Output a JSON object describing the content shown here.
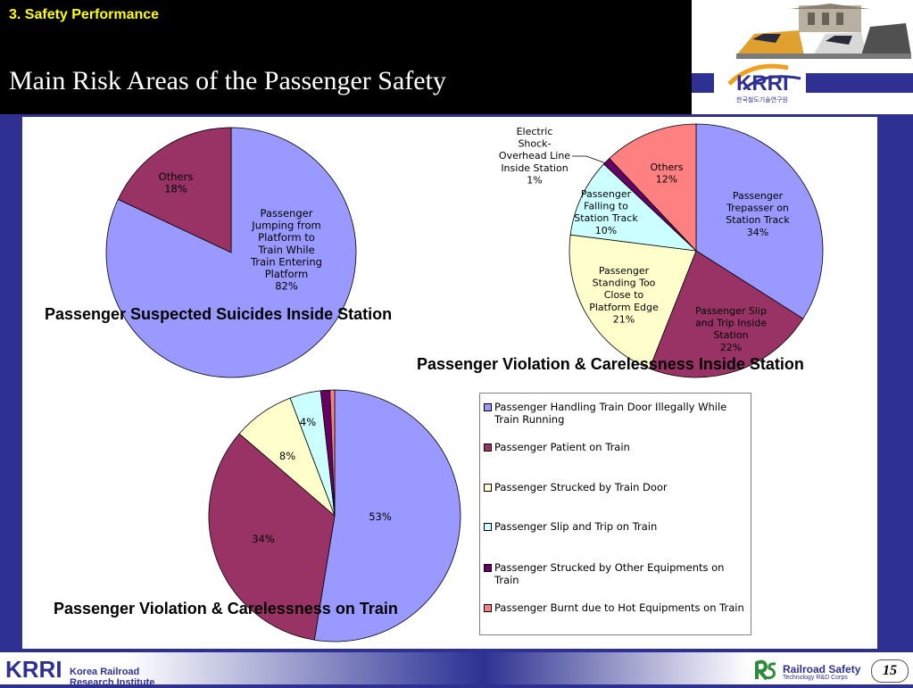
{
  "header": {
    "section_label": "3. Safety Performance",
    "title": "Main Risk Areas of the Passenger Safety"
  },
  "logo": {
    "text": "KRRI",
    "subtitle": "한국철도기술연구원"
  },
  "footer": {
    "logo_text": "KRRI",
    "org_name_line1": "Korea Railroad",
    "org_name_line2": "Research Institute",
    "brand": "Railroad Safety",
    "brand_sub": "Technology R&D Corps",
    "page_number": "15"
  },
  "chart_data": [
    {
      "type": "pie",
      "title": "Passenger Suspected Suicides Inside Station",
      "slices": [
        {
          "label": [
            "Passenger",
            "Jumping from",
            "Platform to",
            "Train While",
            "Train Entering",
            "Platform"
          ],
          "value": 82,
          "value_text": "82%",
          "color": "#9999ff"
        },
        {
          "label": [
            "Others"
          ],
          "value": 18,
          "value_text": "18%",
          "color": "#993366"
        }
      ]
    },
    {
      "type": "pie",
      "title": "Passenger Violation & Carelessness Inside Station",
      "slices": [
        {
          "label": [
            "Passenger",
            "Trepasser on",
            "Station Track"
          ],
          "value": 34,
          "value_text": "34%",
          "color": "#9999ff"
        },
        {
          "label": [
            "Passenger Slip",
            "and Trip Inside",
            "Station"
          ],
          "value": 22,
          "value_text": "22%",
          "color": "#993366"
        },
        {
          "label": [
            "Passenger",
            "Standing Too",
            "Close to",
            "Platform Edge"
          ],
          "value": 21,
          "value_text": "21%",
          "color": "#ffffcc"
        },
        {
          "label": [
            "Passenger",
            "Falling to",
            "Station Track"
          ],
          "value": 10,
          "value_text": "10%",
          "color": "#ccffff"
        },
        {
          "label": [
            "Electric",
            "Shock-",
            "Overhead Line",
            "Inside Station"
          ],
          "value": 1,
          "value_text": "1%",
          "color": "#660066"
        },
        {
          "label": [
            "Others"
          ],
          "value": 12,
          "value_text": "12%",
          "color": "#ff8080"
        }
      ]
    },
    {
      "type": "pie",
      "title": "Passenger Violation & Carelessness on Train",
      "slices": [
        {
          "name": "Passenger Handling Train Door Illegally While Train Running",
          "value": 53,
          "value_text": "53%",
          "color": "#9999ff"
        },
        {
          "name": "Passenger Patient on Train",
          "value": 34,
          "value_text": "34%",
          "color": "#993366"
        },
        {
          "name": "Passenger Strucked by Train Door",
          "value": 8,
          "value_text": "8%",
          "color": "#ffffcc"
        },
        {
          "name": "Passenger Slip and Trip on Train",
          "value": 4,
          "value_text": "4%",
          "color": "#ccffff"
        },
        {
          "name": "Passenger Strucked by Other Equipments on Train",
          "value": 1.2,
          "value_text": "",
          "color": "#660066"
        },
        {
          "name": "Passenger Burnt due to Hot Equipments on Train",
          "value": 0.6,
          "value_text": "",
          "color": "#ff8080"
        }
      ],
      "legend": [
        "Passenger Handling Train Door Illegally While Train Running",
        "Passenger Patient on Train",
        "Passenger Strucked by Train Door",
        "Passenger Slip and Trip on Train",
        "Passenger Strucked by Other Equipments on Train",
        "Passenger Burnt due to Hot Equipments on Train"
      ]
    }
  ]
}
